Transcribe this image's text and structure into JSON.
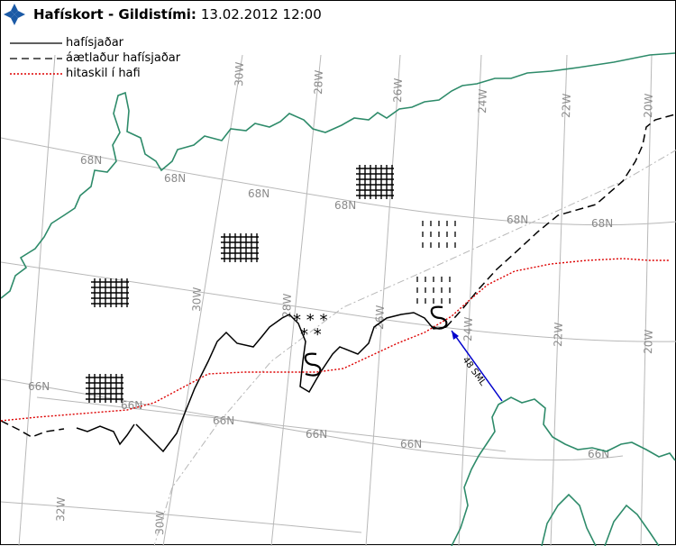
{
  "header": {
    "title": "Hafískort - Gildistími:",
    "datetime": "13.02.2012 12:00"
  },
  "logo": {
    "icon": "vedur-logo-icon",
    "color": "#1b5aa6"
  },
  "legend": {
    "items": [
      {
        "label": "hafísjaðar",
        "style": "solid",
        "color": "#000000"
      },
      {
        "label": "áætlaður hafísjaðar",
        "style": "dashed",
        "color": "#000000"
      },
      {
        "label": "hitaskil í hafi",
        "style": "dotted",
        "color": "#dd0000"
      }
    ]
  },
  "graticule": {
    "latitude_labels": [
      "68N",
      "68N",
      "68N",
      "68N",
      "68N",
      "68N",
      "66N",
      "66N",
      "66N",
      "66N",
      "66N",
      "66N"
    ],
    "longitude_labels_top": [
      "30W",
      "28W",
      "26W",
      "24W",
      "22W",
      "20W"
    ],
    "longitude_labels_mid": [
      "30W",
      "28W",
      "26W",
      "24W",
      "22W",
      "20W"
    ],
    "longitude_labels_bottom": [
      "32W",
      "30W"
    ],
    "color": "#b0b0b0"
  },
  "annotations": {
    "distance": "48 SML",
    "distance_color": "#0000cc",
    "snow_symbols": [
      "* * *",
      "* *"
    ]
  },
  "colors": {
    "coastline": "#2e8b6a",
    "ice_edge": "#000000",
    "ocean_front": "#dd0000"
  }
}
